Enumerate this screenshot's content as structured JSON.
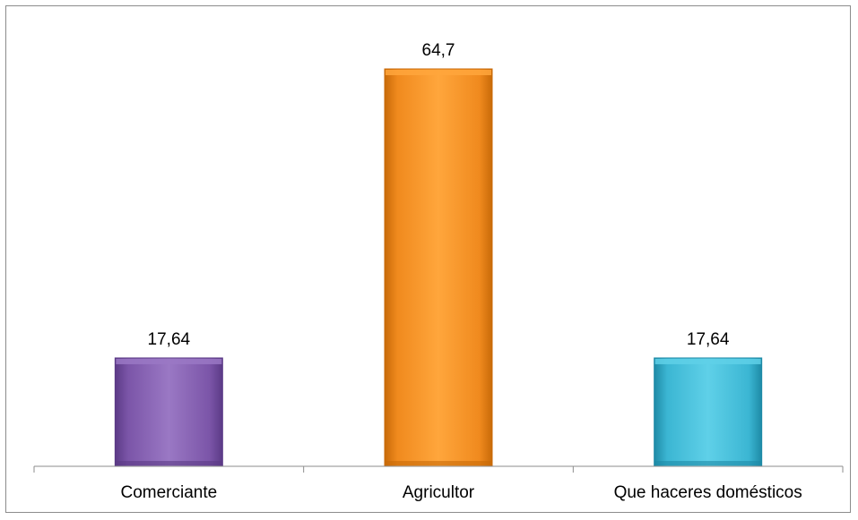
{
  "chart_data": {
    "type": "bar",
    "categories": [
      "Comerciante",
      "Agricultor",
      "Que haceres domésticos"
    ],
    "values": [
      17.64,
      64.7,
      17.64
    ],
    "value_labels": [
      "17,64",
      "64,7",
      "17,64"
    ],
    "title": "",
    "xlabel": "",
    "ylabel": "",
    "ylim": [
      0,
      70
    ],
    "grid": false,
    "legend": "none",
    "colors": [
      "#7b55a8",
      "#f08a1e",
      "#3bb6d3"
    ],
    "colors_light": [
      "#9a78c4",
      "#ffa63c",
      "#5fd0e8"
    ],
    "colors_dark": [
      "#5b3a86",
      "#c86a08",
      "#1e8aa6"
    ]
  }
}
